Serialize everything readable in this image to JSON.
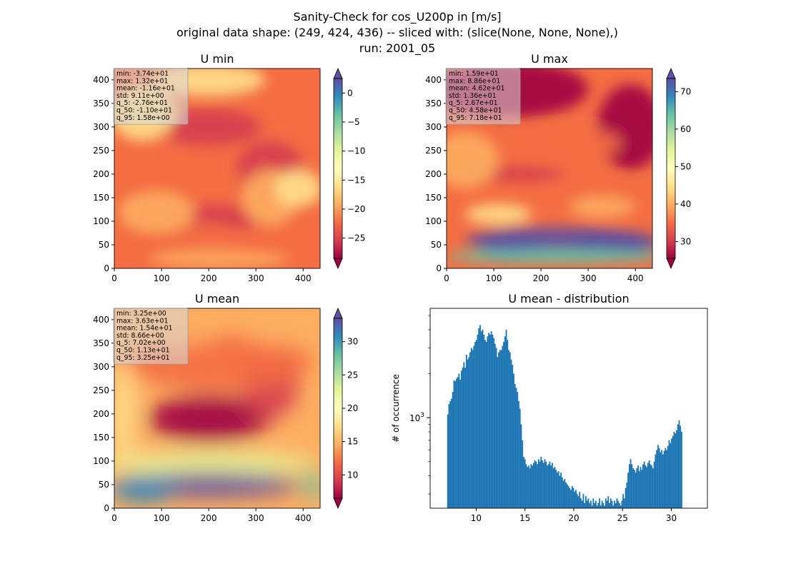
{
  "figure": {
    "title_lines": [
      "Sanity-Check for cos_U200p in [m/s]",
      "original data shape: (249, 424, 436) -- sliced with: (slice(None, None, None),)",
      "run: 2001_05"
    ]
  },
  "colors": {
    "spectral": [
      "#9e0142",
      "#d53e4f",
      "#f46d43",
      "#fdae61",
      "#fee08b",
      "#ffffbf",
      "#e6f598",
      "#abdda4",
      "#66c2a5",
      "#3288bd",
      "#5e4fa2"
    ],
    "hist_bar": "#1f77b4"
  },
  "chart_data": [
    {
      "type": "heatmap",
      "title": "U min",
      "x_ticks": [
        0,
        100,
        200,
        300,
        400
      ],
      "y_ticks": [
        0,
        50,
        100,
        150,
        200,
        250,
        300,
        350,
        400
      ],
      "xlim": [
        0,
        436
      ],
      "ylim": [
        0,
        424
      ],
      "colorbar": {
        "vmin": -28.5,
        "vmax": 2.5,
        "ticks": [
          0,
          -5,
          -10,
          -15,
          -20,
          -25
        ],
        "tick_labels": [
          "0",
          "−5",
          "−10",
          "−15",
          "−20",
          "−25"
        ],
        "extend": "both"
      },
      "stats": [
        "min: -3.74e+01",
        "max: 1.32e+01",
        "mean: -1.16e+01",
        "std: 9.11e+00",
        "q_5: -2.76e+01",
        "q_50: -1.10e+01",
        "q_95: 1.58e+00"
      ]
    },
    {
      "type": "heatmap",
      "title": "U max",
      "x_ticks": [
        0,
        100,
        200,
        300,
        400
      ],
      "y_ticks": [
        0,
        50,
        100,
        150,
        200,
        250,
        300,
        350,
        400
      ],
      "xlim": [
        0,
        436
      ],
      "ylim": [
        0,
        424
      ],
      "colorbar": {
        "vmin": 25.5,
        "vmax": 73.5,
        "ticks": [
          30,
          40,
          50,
          60,
          70
        ],
        "tick_labels": [
          "30",
          "40",
          "50",
          "60",
          "70"
        ],
        "extend": "both"
      },
      "stats": [
        "min: 1.59e+01",
        "max: 8.86e+01",
        "mean: 4.62e+01",
        "std: 1.36e+01",
        "q_5: 2.67e+01",
        "q_50: 4.58e+01",
        "q_95: 7.18e+01"
      ]
    },
    {
      "type": "heatmap",
      "title": "U mean",
      "x_ticks": [
        0,
        100,
        200,
        300,
        400
      ],
      "y_ticks": [
        0,
        50,
        100,
        150,
        200,
        250,
        300,
        350,
        400
      ],
      "xlim": [
        0,
        436
      ],
      "ylim": [
        0,
        424
      ],
      "colorbar": {
        "vmin": 6.5,
        "vmax": 33.5,
        "ticks": [
          10,
          15,
          20,
          25,
          30
        ],
        "tick_labels": [
          "10",
          "15",
          "20",
          "25",
          "30"
        ],
        "extend": "both"
      },
      "stats": [
        "min: 3.25e+00",
        "max: 3.63e+01",
        "mean: 1.54e+01",
        "std: 8.66e+00",
        "q_5: 7.02e+00",
        "q_50: 1.13e+01",
        "q_95: 3.25e+01"
      ]
    },
    {
      "type": "bar",
      "title": "U mean - distribution",
      "ylabel": "# of occurrence",
      "yscale": "log",
      "x_ticks": [
        10,
        15,
        20,
        25,
        30
      ],
      "y_major_tick_label": "10",
      "y_major_tick_exp": "3",
      "xlim": [
        5.28,
        33.7
      ],
      "ylim": [
        240,
        5600
      ],
      "bin_start": 7.02,
      "bin_width": 0.1275,
      "counts": [
        1050,
        1240,
        1300,
        1350,
        1500,
        1800,
        1780,
        1850,
        1900,
        2000,
        1820,
        2100,
        2200,
        2400,
        2200,
        2700,
        2500,
        2600,
        2800,
        3000,
        2900,
        3100,
        3300,
        3400,
        3700,
        4100,
        4300,
        3900,
        4000,
        3700,
        3400,
        3300,
        3600,
        3800,
        3700,
        3900,
        3700,
        3500,
        3200,
        3000,
        2600,
        2800,
        2900,
        2900,
        3100,
        3300,
        3600,
        4000,
        3400,
        2900,
        2800,
        2500,
        2300,
        2000,
        1700,
        1600,
        1500,
        1300,
        1150,
        900,
        700,
        540,
        520,
        480,
        460,
        470,
        450,
        480,
        470,
        490,
        510,
        500,
        480,
        520,
        500,
        540,
        510,
        490,
        520,
        500,
        470,
        480,
        500,
        470,
        490,
        450,
        460,
        440,
        420,
        430,
        400,
        420,
        390,
        370,
        380,
        360,
        350,
        340,
        330,
        320,
        340,
        330,
        310,
        320,
        300,
        290,
        310,
        280,
        270,
        300,
        260,
        290,
        270,
        280,
        260,
        270,
        250,
        280,
        260,
        270,
        250,
        260,
        280,
        250,
        270,
        260,
        250,
        280,
        270,
        290,
        260,
        280,
        270,
        250,
        270,
        260,
        280,
        270,
        260,
        250,
        270,
        300,
        280,
        330,
        360,
        420,
        480,
        520,
        480,
        450,
        440,
        420,
        450,
        470,
        430,
        460,
        440,
        480,
        500,
        470,
        460,
        490,
        510,
        480,
        470,
        450,
        500,
        560,
        600,
        650,
        620,
        580,
        600,
        560,
        590,
        620,
        600,
        640,
        700,
        670,
        720,
        750,
        800,
        780,
        820,
        900,
        960,
        880,
        800
      ]
    }
  ]
}
